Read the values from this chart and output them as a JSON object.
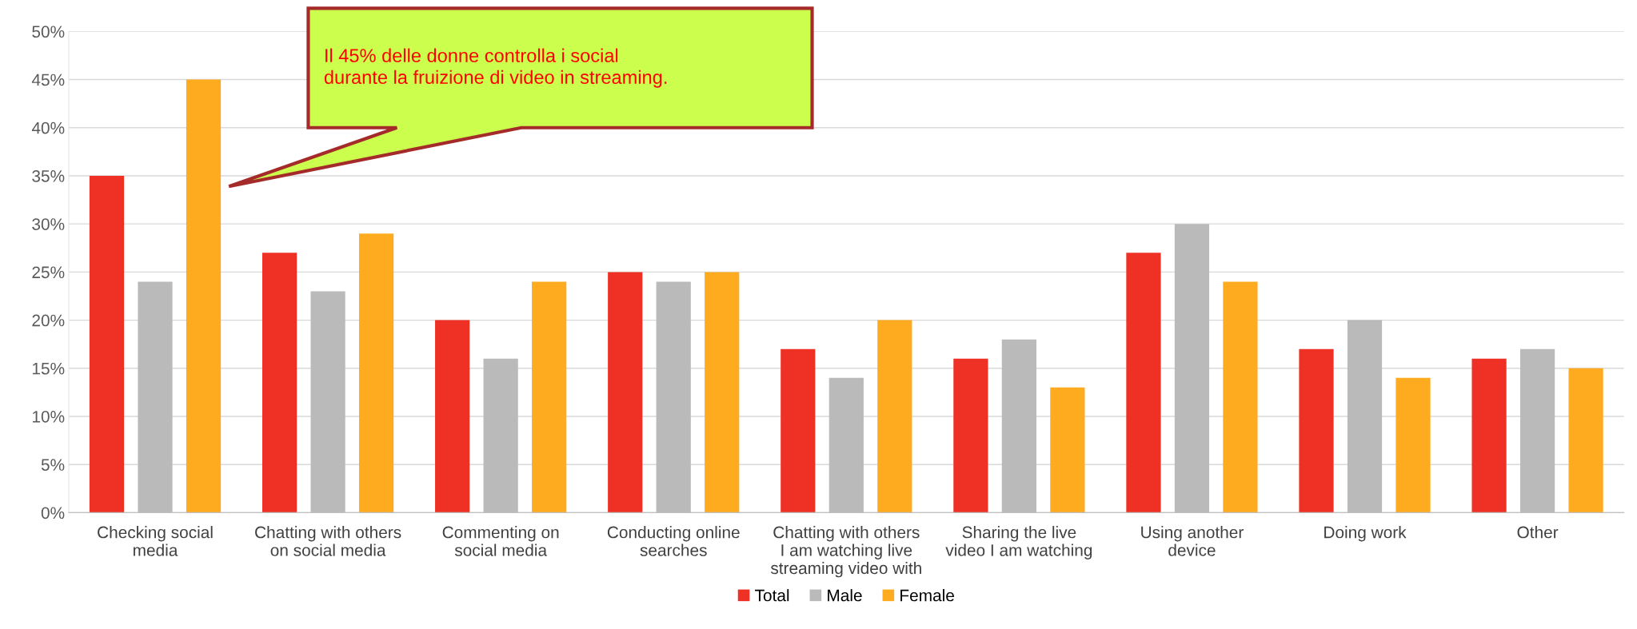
{
  "chart_data": {
    "type": "bar",
    "categories": [
      "Checking social\nmedia",
      "Chatting with others\non social media",
      "Commenting on\nsocial media",
      "Conducting online\nsearches",
      "Chatting with others\nI am watching live\nstreaming video with",
      "Sharing the live\nvideo I am watching",
      "Using another\ndevice",
      "Doing work",
      "Other"
    ],
    "series": [
      {
        "name": "Total",
        "color": "#ee3124",
        "values": [
          35,
          27,
          20,
          25,
          17,
          16,
          27,
          17,
          16
        ]
      },
      {
        "name": "Male",
        "color": "#bababa",
        "values": [
          24,
          23,
          16,
          24,
          14,
          18,
          30,
          20,
          17
        ]
      },
      {
        "name": "Female",
        "color": "#ffab1f",
        "values": [
          45,
          29,
          24,
          25,
          20,
          13,
          24,
          14,
          15
        ]
      }
    ],
    "ylim": [
      0,
      50
    ],
    "yticks": [
      {
        "value": 0,
        "label": "0%"
      },
      {
        "value": 5,
        "label": "5%"
      },
      {
        "value": 10,
        "label": "10%"
      },
      {
        "value": 15,
        "label": "15%"
      },
      {
        "value": 20,
        "label": "20%"
      },
      {
        "value": 25,
        "label": "25%"
      },
      {
        "value": 30,
        "label": "30%"
      },
      {
        "value": 35,
        "label": "35%"
      },
      {
        "value": 40,
        "label": "40%"
      },
      {
        "value": 45,
        "label": "45%"
      },
      {
        "value": 50,
        "label": "50%"
      }
    ],
    "grid": "y",
    "legend": "bottom",
    "annotations": [
      "Il 45% delle donne controlla i social\ndurante la fruizione di video in streaming."
    ]
  }
}
